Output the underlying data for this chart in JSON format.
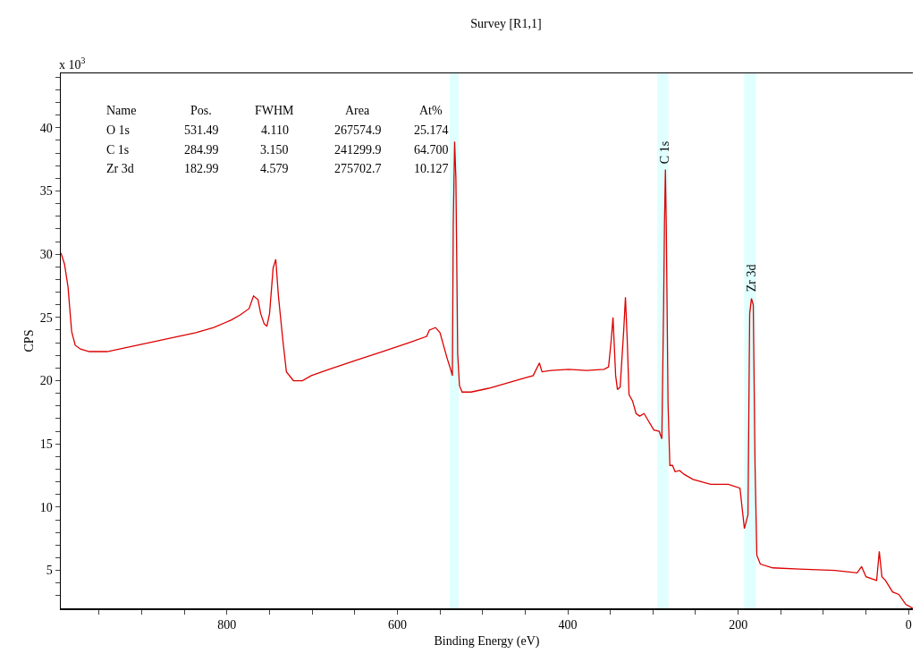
{
  "chart_data": {
    "type": "line",
    "title": "Survey [R1,1]",
    "xlabel": "Binding Energy (eV)",
    "ylabel": "CPS",
    "annotations": [
      "x 10$^{3}$",
      "Name",
      "Pos.",
      "FWHM",
      "Area",
      "At%",
      "O 1s",
      "531.49",
      "4.110",
      "267574.9",
      "25.174",
      "C 1s",
      "284.99",
      "3.150",
      "241299.9",
      "64.700",
      "Zr 3d",
      "182.99",
      "4.579",
      "275702.7",
      "10.127",
      {
        "text": "C 1s",
        "x": 285.4,
        "y": 36.7
      },
      {
        "text": "Zr 3d",
        "x": 184.4,
        "y": 26.6
      }
    ],
    "series": [
      {
        "color": "#dd0000",
        "x": [
          994.8,
          990.6,
          986.5,
          982.3,
          978.1,
          971.9,
          961.5,
          940.6,
          919.8,
          899,
          878.1,
          857.3,
          836.5,
          815.6,
          794.8,
          784.4,
          774,
          768.8,
          763.5,
          760.4,
          756.3,
          753.1,
          750,
          745.8,
          742.7,
          739.6,
          734.4,
          730.2,
          721.9,
          711.5,
          701,
          680.2,
          649,
          617.7,
          586.5,
          565.6,
          562.5,
          555.2,
          550,
          541.7,
          537.5,
          535.4,
          534.4,
          532.8,
          531.3,
          529.2,
          527.1,
          524,
          513.5,
          492.7,
          471.9,
          451,
          440.6,
          433.3,
          430.2,
          419.8,
          399,
          378.1,
          357.3,
          352.1,
          349,
          346.9,
          343.8,
          341.7,
          338.5,
          334.4,
          332.3,
          330.2,
          328.1,
          324,
          319.8,
          315.6,
          310.4,
          305.2,
          299,
          292.7,
          289.6,
          287.5,
          286.5,
          285.4,
          284.4,
          282.3,
          280.2,
          277.1,
          274,
          268.8,
          263.5,
          253.1,
          242.7,
          232.3,
          221.9,
          211.5,
          197.9,
          192.7,
          188.5,
          186.5,
          184.4,
          182.3,
          180.2,
          178.1,
          174,
          159.4,
          128.1,
          86.5,
          60.4,
          55.2,
          50,
          37.5,
          34.4,
          31.3,
          27.1,
          18.8,
          11.5,
          3.1,
          -5
        ],
        "values": [
          30.1,
          29.2,
          27.4,
          23.9,
          22.8,
          22.5,
          22.3,
          22.3,
          22.6,
          22.9,
          23.2,
          23.5,
          23.8,
          24.2,
          24.8,
          25.2,
          25.7,
          26.7,
          26.4,
          25.3,
          24.5,
          24.3,
          25.3,
          28.9,
          29.6,
          26.7,
          23.2,
          20.7,
          20.0,
          20.0,
          20.4,
          20.9,
          21.6,
          22.3,
          23.0,
          23.5,
          24.0,
          24.2,
          23.8,
          21.8,
          20.9,
          20.4,
          32.4,
          38.9,
          36.0,
          22.1,
          19.6,
          19.1,
          19.1,
          19.4,
          19.8,
          20.2,
          20.4,
          21.4,
          20.7,
          20.8,
          20.9,
          20.8,
          20.9,
          21.1,
          23.2,
          25.0,
          20.4,
          19.3,
          19.5,
          23.9,
          26.6,
          23.2,
          18.9,
          18.4,
          17.4,
          17.2,
          17.4,
          16.8,
          16.1,
          16.0,
          15.4,
          26.0,
          32.4,
          36.7,
          32.4,
          18.2,
          13.3,
          13.3,
          12.8,
          12.9,
          12.6,
          12.2,
          12.0,
          11.8,
          11.8,
          11.8,
          11.5,
          8.3,
          9.4,
          25.3,
          26.5,
          26.0,
          13.3,
          6.2,
          5.5,
          5.2,
          5.1,
          5.0,
          4.8,
          5.3,
          4.5,
          4.2,
          6.5,
          4.5,
          4.2,
          3.3,
          3.1,
          2.3,
          2.0
        ]
      }
    ],
    "bands": [
      {
        "axis": "x",
        "from": 528,
        "to": 538.5,
        "color": "#e0ffff"
      },
      {
        "axis": "x",
        "from": 282,
        "to": 295,
        "color": "#e0ffff"
      },
      {
        "axis": "x",
        "from": 179,
        "to": 193,
        "color": "#e0ffff"
      }
    ],
    "xlim": [
      995,
      -5
    ],
    "xticks": [
      {
        "value": 950,
        "label": null
      },
      {
        "value": 900,
        "label": null
      },
      {
        "value": 850,
        "label": null
      },
      800,
      {
        "value": 750,
        "label": null
      },
      {
        "value": 700,
        "label": null
      },
      {
        "value": 650,
        "label": null
      },
      600,
      {
        "value": 550,
        "label": null
      },
      {
        "value": 500,
        "label": null
      },
      {
        "value": 450,
        "label": null
      },
      400,
      {
        "value": 350,
        "label": null
      },
      {
        "value": 300,
        "label": null
      },
      {
        "value": 250,
        "label": null
      },
      200,
      {
        "value": 150,
        "label": null
      },
      {
        "value": 100,
        "label": null
      },
      {
        "value": 50,
        "label": null
      },
      0
    ],
    "ylim": [
      2,
      44.3
    ],
    "yticks": [
      {
        "value": 3,
        "label": null
      },
      {
        "value": 4,
        "label": null
      },
      5,
      {
        "value": 6,
        "label": null
      },
      {
        "value": 7,
        "label": null
      },
      {
        "value": 8,
        "label": null
      },
      {
        "value": 9,
        "label": null
      },
      10,
      {
        "value": 11,
        "label": null
      },
      {
        "value": 12,
        "label": null
      },
      {
        "value": 13,
        "label": null
      },
      {
        "value": 14,
        "label": null
      },
      15,
      {
        "value": 16,
        "label": null
      },
      {
        "value": 17,
        "label": null
      },
      {
        "value": 18,
        "label": null
      },
      {
        "value": 19,
        "label": null
      },
      20,
      {
        "value": 21,
        "label": null
      },
      {
        "value": 22,
        "label": null
      },
      {
        "value": 23,
        "label": null
      },
      {
        "value": 24,
        "label": null
      },
      25,
      {
        "value": 26,
        "label": null
      },
      {
        "value": 27,
        "label": null
      },
      {
        "value": 28,
        "label": null
      },
      {
        "value": 29,
        "label": null
      },
      30,
      {
        "value": 31,
        "label": null
      },
      {
        "value": 32,
        "label": null
      },
      {
        "value": 33,
        "label": null
      },
      {
        "value": 34,
        "label": null
      },
      35,
      {
        "value": 36,
        "label": null
      },
      {
        "value": 37,
        "label": null
      },
      {
        "value": 38,
        "label": null
      },
      {
        "value": 39,
        "label": null
      },
      40,
      {
        "value": 41,
        "label": null
      },
      {
        "value": 42,
        "label": null
      },
      {
        "value": 43,
        "label": null
      },
      {
        "value": 44,
        "label": null
      }
    ],
    "grid": false
  }
}
